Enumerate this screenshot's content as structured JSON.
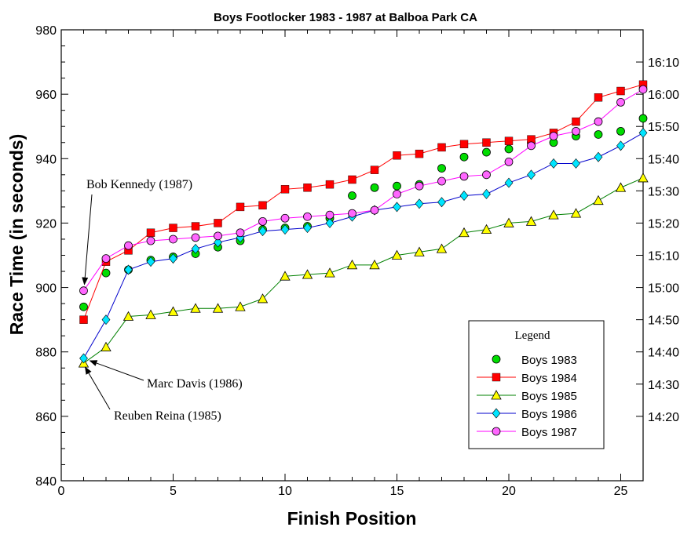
{
  "chart_data": {
    "type": "line",
    "title": "Boys Footlocker 1983 - 1987 at Balboa Park CA",
    "xlabel": "Finish Position",
    "ylabel": "Race Time (in seconds)",
    "xlim": [
      0,
      26
    ],
    "ylim": [
      840,
      980
    ],
    "xticks": [
      0,
      5,
      10,
      15,
      20,
      25
    ],
    "yticks": [
      840,
      860,
      880,
      900,
      920,
      940,
      960,
      980
    ],
    "y2_ticks": [
      {
        "value": 860,
        "label": "14:20"
      },
      {
        "value": 870,
        "label": "14:30"
      },
      {
        "value": 880,
        "label": "14:40"
      },
      {
        "value": 890,
        "label": "14:50"
      },
      {
        "value": 900,
        "label": "15:00"
      },
      {
        "value": 910,
        "label": "15:10"
      },
      {
        "value": 920,
        "label": "15:20"
      },
      {
        "value": 930,
        "label": "15:30"
      },
      {
        "value": 940,
        "label": "15:40"
      },
      {
        "value": 950,
        "label": "15:50"
      },
      {
        "value": 960,
        "label": "16:00"
      },
      {
        "value": 970,
        "label": "16:10"
      }
    ],
    "grid": false,
    "legend": {
      "title": "Legend",
      "placement": "bottom-right"
    },
    "x": [
      1,
      2,
      3,
      4,
      5,
      6,
      7,
      8,
      9,
      10,
      11,
      12,
      13,
      14,
      15,
      16,
      17,
      18,
      19,
      20,
      21,
      22,
      23,
      24,
      25,
      26
    ],
    "series": [
      {
        "name": "Boys 1983",
        "marker": "circle",
        "color": "#00dd00",
        "line": false,
        "values": [
          894,
          904.5,
          905.5,
          908.5,
          909.5,
          910.5,
          912.5,
          914.5,
          918,
          918.5,
          919,
          921.5,
          928.5,
          931,
          931.5,
          932,
          937,
          940.5,
          942,
          943,
          945,
          945,
          947,
          947.5,
          948.5,
          952.5
        ]
      },
      {
        "name": "Boys 1984",
        "marker": "square",
        "color": "#ff0000",
        "line": true,
        "values": [
          890,
          908,
          911.5,
          917,
          918.5,
          919,
          920,
          925,
          925.5,
          930.5,
          931,
          932,
          933.5,
          936.5,
          941,
          941.5,
          943.5,
          944.5,
          945,
          945.5,
          946,
          948,
          951.5,
          959,
          961,
          963
        ]
      },
      {
        "name": "Boys 1985",
        "marker": "triangle",
        "color": "#ffff00",
        "lineColor": "#008000",
        "line": true,
        "values": [
          876.5,
          881.5,
          891,
          891.5,
          892.5,
          893.5,
          893.5,
          894,
          896.5,
          903.5,
          904,
          904.5,
          907,
          907,
          910,
          911,
          912,
          917,
          918,
          920,
          920.5,
          922.5,
          923,
          927,
          931,
          934
        ]
      },
      {
        "name": "Boys 1986",
        "marker": "diamond",
        "color": "#00e5ff",
        "lineColor": "#0000cc",
        "line": true,
        "values": [
          878,
          890,
          905.5,
          908,
          909,
          912,
          914,
          915.5,
          917.5,
          918,
          918.5,
          920,
          922,
          924,
          925,
          926,
          926.5,
          928.5,
          929,
          932.5,
          935,
          938.5,
          938.5,
          940.5,
          944,
          948
        ]
      },
      {
        "name": "Boys 1987",
        "marker": "circle",
        "color": "#ff66ff",
        "lineColor": "#ff00ff",
        "line": true,
        "values": [
          899,
          909,
          913,
          914.5,
          915,
          915.5,
          916,
          917,
          920.5,
          921.5,
          922,
          922.5,
          923,
          924,
          929,
          931.5,
          933,
          934.5,
          935,
          939,
          944,
          947,
          948.5,
          951.5,
          957.5,
          961.5
        ]
      }
    ],
    "annotations": [
      {
        "text": "Bob Kennedy (1987)",
        "target_x": 1,
        "target_y": 899
      },
      {
        "text": "Marc Davis (1986)",
        "target_x": 1,
        "target_y": 878
      },
      {
        "text": "Reuben Reina (1985)",
        "target_x": 1,
        "target_y": 876.5
      }
    ]
  }
}
